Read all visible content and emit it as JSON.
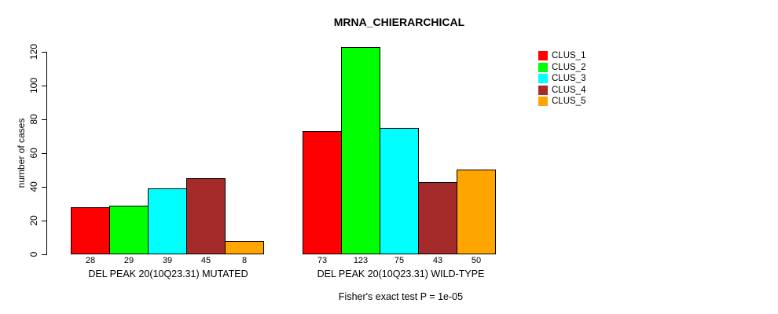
{
  "chart_data": {
    "type": "bar",
    "title": "MRNA_CHIERARCHICAL",
    "xlabel": "",
    "ylabel": "number of cases",
    "ylim": [
      0,
      120
    ],
    "y_ticks": [
      0,
      20,
      40,
      60,
      80,
      100,
      120
    ],
    "grid": false,
    "legend_position": "right",
    "bar_value_labels": true,
    "categories": [
      "DEL PEAK 20(10Q23.31) MUTATED",
      "DEL PEAK 20(10Q23.31) WILD-TYPE"
    ],
    "series": [
      {
        "name": "CLUS_1",
        "color": "#FF0000",
        "values": [
          28,
          73
        ]
      },
      {
        "name": "CLUS_2",
        "color": "#00FF00",
        "values": [
          29,
          123
        ]
      },
      {
        "name": "CLUS_3",
        "color": "#00FFFF",
        "values": [
          39,
          75
        ]
      },
      {
        "name": "CLUS_4",
        "color": "#A52A2A",
        "values": [
          45,
          43
        ]
      },
      {
        "name": "CLUS_5",
        "color": "#FFA500",
        "values": [
          8,
          50
        ]
      }
    ],
    "annotation": "Fisher's exact test P = 1e-05"
  }
}
